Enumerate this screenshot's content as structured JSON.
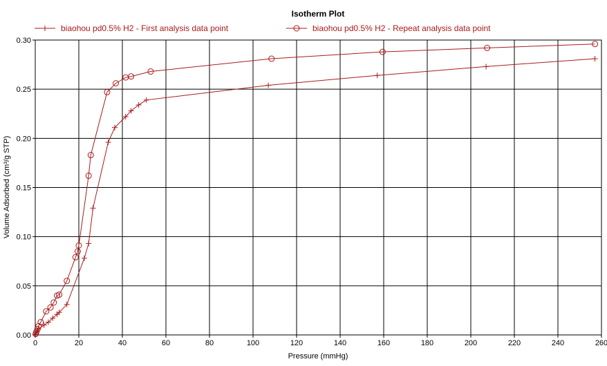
{
  "chart_data": {
    "type": "line",
    "title": "Isotherm Plot",
    "xlabel": "Pressure (mmHg)",
    "ylabel": "Volume Adsorbed (cm³/g STP)",
    "xlim": [
      0,
      260
    ],
    "ylim": [
      0,
      0.3
    ],
    "xticks": [
      "0",
      "20",
      "40",
      "60",
      "80",
      "100",
      "120",
      "140",
      "160",
      "180",
      "200",
      "220",
      "240",
      "260"
    ],
    "yticks": [
      "0.00",
      "0.05",
      "0.10",
      "0.15",
      "0.20",
      "0.25",
      "0.30"
    ],
    "grid": true,
    "legend_position": "top",
    "colors": {
      "series": "#aa1a1a",
      "grid": "#000000",
      "legend_text": "#aa1a1a",
      "frame": "#000000"
    },
    "series": [
      {
        "name": "biaohou pd0.5% H2 - First analysis data point",
        "marker": "plus",
        "points": [
          [
            0.2,
            0.0005
          ],
          [
            0.5,
            0.002
          ],
          [
            1.0,
            0.004
          ],
          [
            1.5,
            0.006
          ],
          [
            4,
            0.01
          ],
          [
            6,
            0.013
          ],
          [
            8,
            0.017
          ],
          [
            10,
            0.021
          ],
          [
            11,
            0.023
          ],
          [
            14.5,
            0.031
          ],
          [
            22.5,
            0.078
          ],
          [
            24.5,
            0.093
          ],
          [
            26.5,
            0.129
          ],
          [
            33.5,
            0.196
          ],
          [
            36.5,
            0.211
          ],
          [
            41.5,
            0.222
          ],
          [
            44,
            0.228
          ],
          [
            47.5,
            0.234
          ],
          [
            51,
            0.239
          ],
          [
            107,
            0.254
          ],
          [
            157,
            0.264
          ],
          [
            207,
            0.273
          ],
          [
            257,
            0.281
          ]
        ]
      },
      {
        "name": "biaohou pd0.5% H2 - Repeat analysis data point",
        "marker": "circle",
        "points": [
          [
            0.2,
            0.001
          ],
          [
            0.5,
            0.003
          ],
          [
            1.0,
            0.006
          ],
          [
            1.5,
            0.009
          ],
          [
            2.5,
            0.013
          ],
          [
            5,
            0.024
          ],
          [
            7,
            0.028
          ],
          [
            8.5,
            0.033
          ],
          [
            10,
            0.04
          ],
          [
            11,
            0.041
          ],
          [
            14.5,
            0.055
          ],
          [
            18.5,
            0.079
          ],
          [
            19.5,
            0.085
          ],
          [
            20,
            0.091
          ],
          [
            24.5,
            0.162
          ],
          [
            25.5,
            0.183
          ],
          [
            33,
            0.247
          ],
          [
            37,
            0.256
          ],
          [
            41.5,
            0.262
          ],
          [
            44,
            0.263
          ],
          [
            53,
            0.268
          ],
          [
            108.5,
            0.281
          ],
          [
            159.5,
            0.288
          ],
          [
            207.5,
            0.292
          ],
          [
            257,
            0.296
          ]
        ]
      }
    ]
  }
}
